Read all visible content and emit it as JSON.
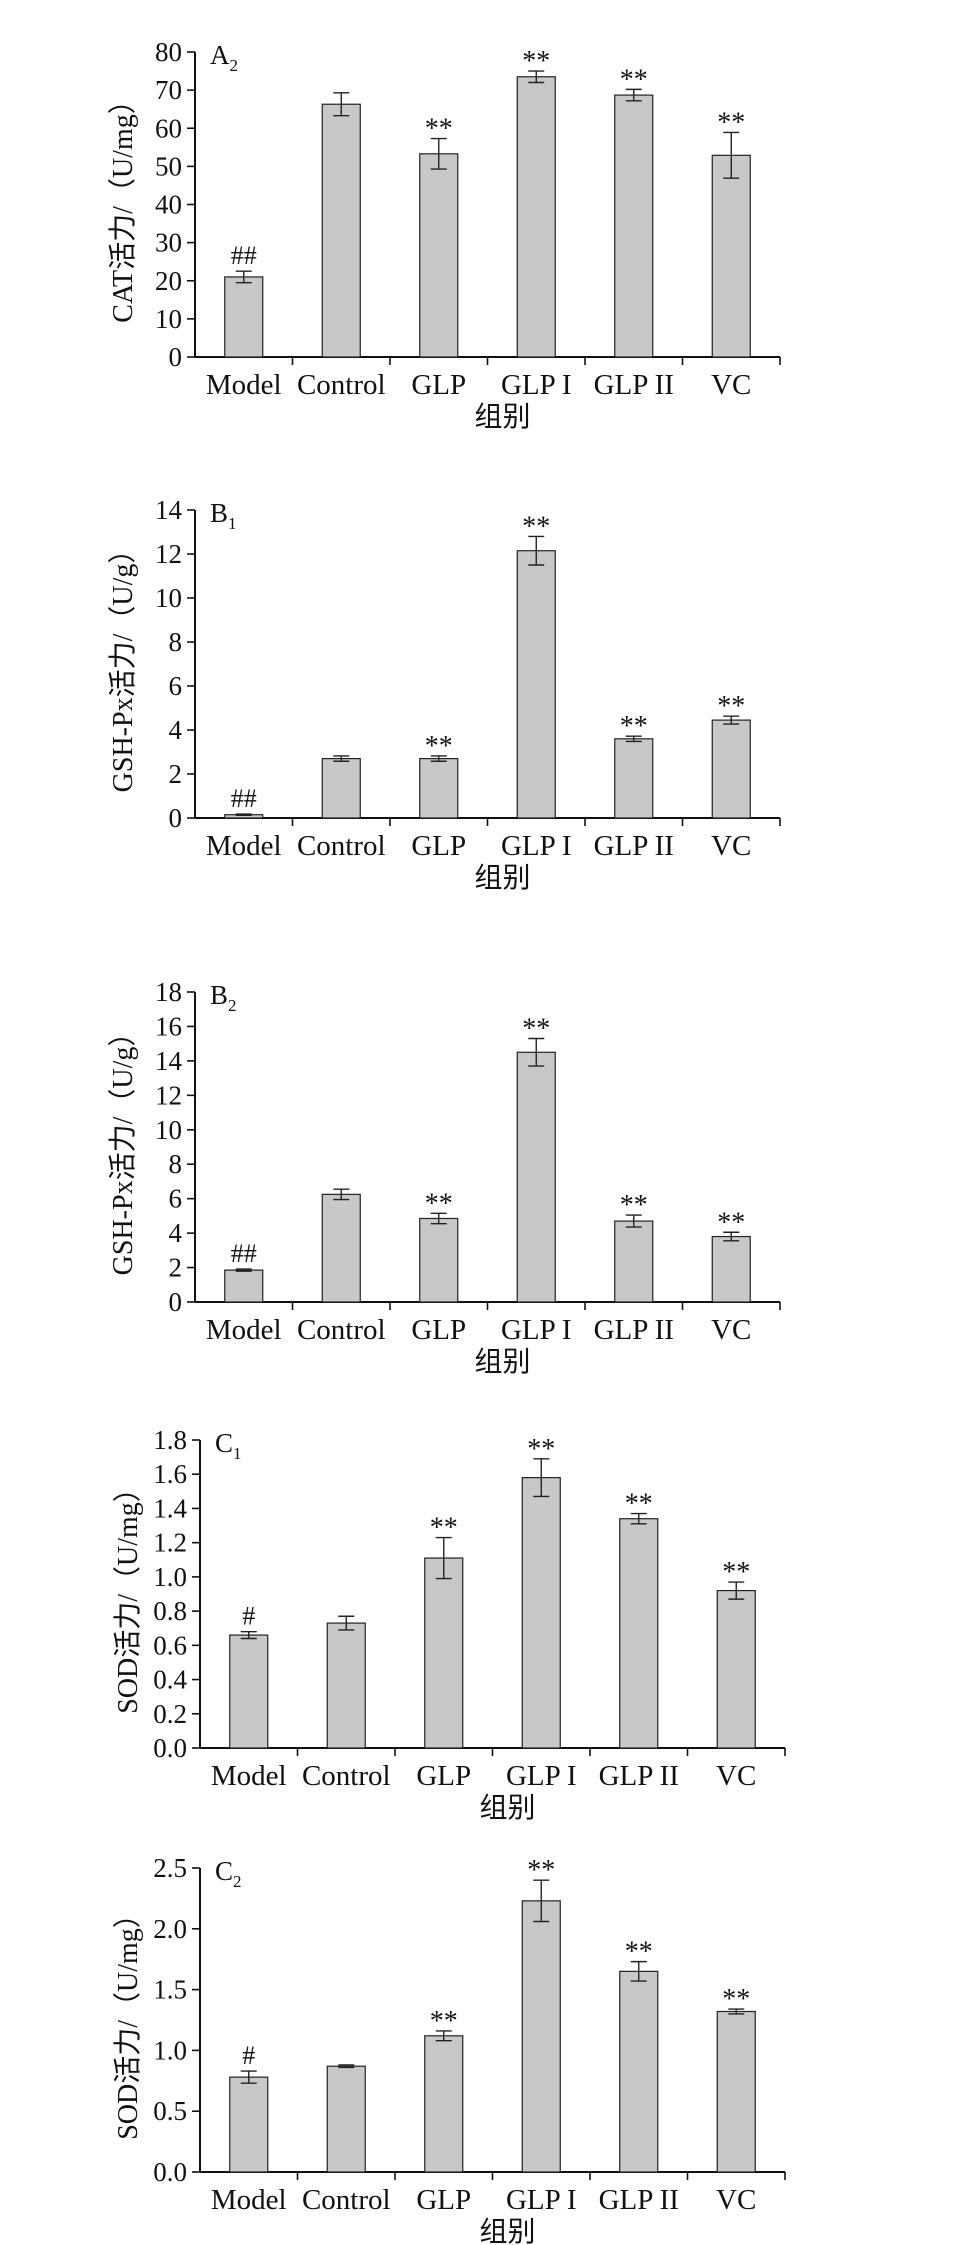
{
  "xlabel": "组别",
  "categories": [
    "Model",
    "Control",
    "GLP",
    "GLP I",
    "GLP II",
    "VC"
  ],
  "chart_data": [
    {
      "type": "bar",
      "panel_label": "A",
      "panel_sub": "2",
      "ylabel": "CAT活力/（U/mg）",
      "ylim": [
        0,
        80
      ],
      "yticks": [
        "0",
        "10",
        "20",
        "30",
        "40",
        "50",
        "60",
        "70",
        "80"
      ],
      "categories": [
        "Model",
        "Control",
        "GLP",
        "GLP I",
        "GLP II",
        "VC"
      ],
      "values": [
        21,
        66.3,
        53.3,
        73.5,
        68.7,
        52.9
      ],
      "errors": [
        1.5,
        3,
        4,
        1.5,
        1.5,
        6
      ],
      "annotations": [
        "##",
        "",
        "**",
        "**",
        "**",
        "**"
      ]
    },
    {
      "type": "bar",
      "panel_label": "B",
      "panel_sub": "1",
      "ylabel": "GSH-Px活力/（U/g）",
      "ylim": [
        0,
        14
      ],
      "yticks": [
        "0",
        "2",
        "4",
        "6",
        "8",
        "10",
        "12",
        "14"
      ],
      "categories": [
        "Model",
        "Control",
        "GLP",
        "GLP I",
        "GLP II",
        "VC"
      ],
      "values": [
        0.15,
        2.7,
        2.7,
        12.15,
        3.6,
        4.45
      ],
      "errors": [
        0.03,
        0.12,
        0.12,
        0.65,
        0.12,
        0.18
      ],
      "annotations": [
        "##",
        "",
        "**",
        "**",
        "**",
        "**"
      ]
    },
    {
      "type": "bar",
      "panel_label": "B",
      "panel_sub": "2",
      "ylabel": "GSH-Px活力/（U/g）",
      "ylim": [
        0,
        18
      ],
      "yticks": [
        "0",
        "2",
        "4",
        "6",
        "8",
        "10",
        "12",
        "14",
        "16",
        "18"
      ],
      "categories": [
        "Model",
        "Control",
        "GLP",
        "GLP I",
        "GLP II",
        "VC"
      ],
      "values": [
        1.85,
        6.25,
        4.85,
        14.5,
        4.7,
        3.8
      ],
      "errors": [
        0.06,
        0.3,
        0.3,
        0.8,
        0.35,
        0.25
      ],
      "annotations": [
        "##",
        "",
        "**",
        "**",
        "**",
        "**"
      ]
    },
    {
      "type": "bar",
      "panel_label": "C",
      "panel_sub": "1",
      "ylabel": "SOD活力/（U/mg）",
      "ylim": [
        0,
        1.8
      ],
      "yticks": [
        "0.0",
        "0.2",
        "0.4",
        "0.6",
        "0.8",
        "1.0",
        "1.2",
        "1.4",
        "1.6",
        "1.8"
      ],
      "categories": [
        "Model",
        "Control",
        "GLP",
        "GLP I",
        "GLP II",
        "VC"
      ],
      "values": [
        0.66,
        0.73,
        1.11,
        1.58,
        1.34,
        0.92
      ],
      "errors": [
        0.02,
        0.04,
        0.12,
        0.11,
        0.03,
        0.05
      ],
      "annotations": [
        "#",
        "",
        "**",
        "**",
        "**",
        "**"
      ]
    },
    {
      "type": "bar",
      "panel_label": "C",
      "panel_sub": "2",
      "ylabel": "SOD活力/（U/mg）",
      "ylim": [
        0,
        2.5
      ],
      "yticks": [
        "0.0",
        "0.5",
        "1.0",
        "1.5",
        "2.0",
        "2.5"
      ],
      "categories": [
        "Model",
        "Control",
        "GLP",
        "GLP I",
        "GLP II",
        "VC"
      ],
      "values": [
        0.78,
        0.87,
        1.12,
        2.23,
        1.65,
        1.32
      ],
      "errors": [
        0.05,
        0.01,
        0.04,
        0.17,
        0.08,
        0.02
      ],
      "annotations": [
        "#",
        "",
        "**",
        "**",
        "**",
        "**"
      ]
    }
  ]
}
